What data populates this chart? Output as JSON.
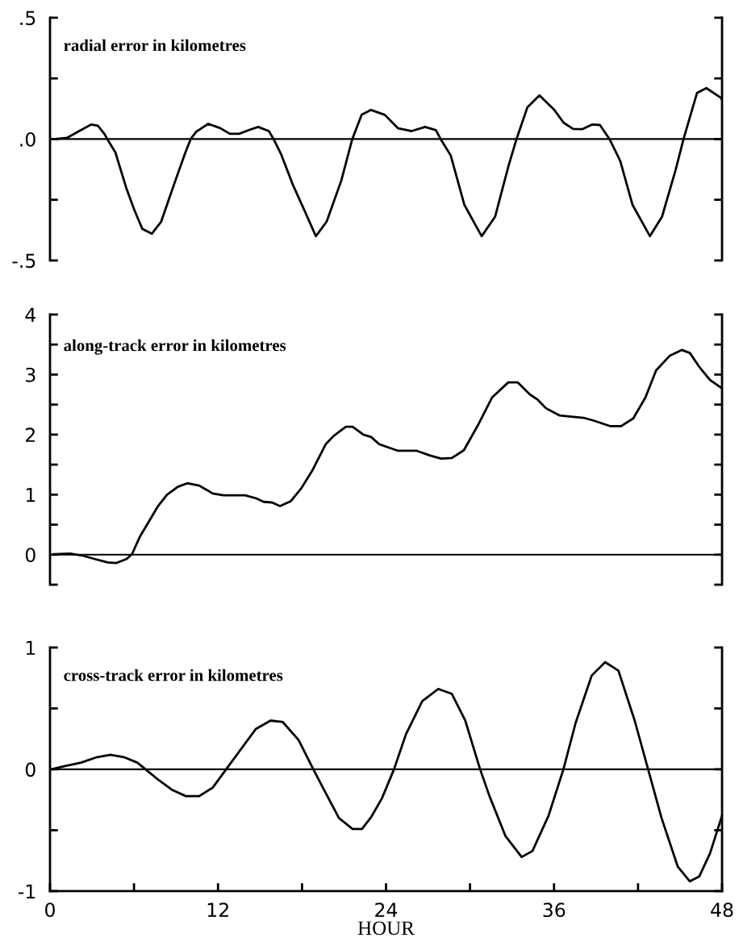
{
  "chart_data": [
    {
      "type": "line",
      "annotations": [
        "radial error in kilometres"
      ],
      "tick_labels": "y",
      "xlim": [
        0,
        48
      ],
      "ylim": [
        -0.5,
        0.5
      ],
      "yticks": [
        {
          "value": -0.5,
          "label": "-.5"
        },
        {
          "value": -0.25,
          "label": null
        },
        {
          "value": 0,
          "label": ".0"
        },
        {
          "value": 0.25,
          "label": null
        },
        {
          "value": 0.5,
          "label": ".5"
        }
      ],
      "ref_lines": [
        {
          "axis": "y",
          "value": 0,
          "color": "#000000"
        }
      ],
      "x": [
        0.35,
        1.21,
        1.98,
        2.94,
        3.42,
        3.9,
        4.09,
        4.67,
        5.44,
        6.01,
        6.59,
        7.27,
        7.94,
        8.9,
        9.67,
        10.05,
        10.44,
        11.3,
        12.16,
        12.84,
        13.51,
        14.29,
        14.86,
        15.63,
        15.97,
        16.49,
        17.36,
        18.22,
        18.99,
        19.76,
        20.81,
        21.59,
        22.26,
        22.93,
        23.91,
        24.87,
        25.83,
        26.79,
        27.56,
        27.9,
        28.62,
        29.59,
        30.83,
        31.79,
        32.75,
        33.32,
        34.09,
        34.96,
        36.02,
        36.69,
        37.37,
        38.04,
        38.71,
        39.28,
        39.96,
        40.73,
        41.6,
        42.85,
        43.71,
        44.67,
        45.25,
        46.21,
        46.88,
        47.93,
        48
      ],
      "series": [
        {
          "color": "#000000",
          "values": [
            0,
            0.005,
            0.03,
            0.06,
            0.055,
            0.02,
            0,
            -0.055,
            -0.2,
            -0.29,
            -0.37,
            -0.39,
            -0.34,
            -0.18,
            -0.055,
            0,
            0.03,
            0.063,
            0.045,
            0.022,
            0.022,
            0.039,
            0.05,
            0.033,
            0,
            -0.06,
            -0.19,
            -0.3,
            -0.4,
            -0.34,
            -0.17,
            0,
            0.1,
            0.12,
            0.1,
            0.044,
            0.033,
            0.05,
            0.037,
            0,
            -0.067,
            -0.27,
            -0.4,
            -0.32,
            -0.11,
            0,
            0.13,
            0.18,
            0.12,
            0.067,
            0.042,
            0.041,
            0.06,
            0.058,
            0,
            -0.09,
            -0.27,
            -0.4,
            -0.32,
            -0.13,
            0,
            0.19,
            0.21,
            0.17,
            0.16
          ]
        }
      ]
    },
    {
      "type": "line",
      "annotations": [
        "along-track error in kilometres"
      ],
      "tick_labels": "y",
      "xlim": [
        0,
        48
      ],
      "ylim": [
        -0.5,
        4
      ],
      "yticks": [
        {
          "value": -0.5,
          "label": null
        },
        0,
        {
          "value": 0.5,
          "label": null
        },
        1,
        {
          "value": 1.5,
          "label": null
        },
        2,
        {
          "value": 2.5,
          "label": null
        },
        3,
        {
          "value": 3.5,
          "label": null
        },
        4
      ],
      "ref_lines": [
        {
          "axis": "y",
          "value": 0,
          "color": "#000000"
        }
      ],
      "x": [
        0.29,
        1.44,
        2.4,
        3.17,
        4.13,
        4.71,
        5.48,
        5.86,
        6.44,
        7.01,
        7.69,
        8.36,
        9.13,
        9.8,
        10.66,
        11.62,
        12.39,
        13.93,
        14.7,
        15.27,
        15.85,
        16.43,
        17.19,
        17.96,
        18.73,
        19.69,
        20.27,
        21.13,
        21.61,
        22.38,
        22.94,
        23.51,
        24.86,
        26.2,
        27.16,
        27.93,
        28.7,
        29.56,
        30.62,
        31.58,
        32.73,
        33.4,
        34.27,
        34.84,
        35.42,
        36.38,
        38.11,
        38.88,
        40.03,
        40.79,
        41.66,
        42.53,
        43.29,
        44.25,
        45.12,
        45.7,
        46.37,
        47.14,
        48
      ],
      "series": [
        {
          "color": "#000000",
          "values": [
            0.01,
            0.02,
            -0.02,
            -0.07,
            -0.13,
            -0.14,
            -0.07,
            0.01,
            0.31,
            0.53,
            0.8,
            1.0,
            1.13,
            1.19,
            1.15,
            1.02,
            0.99,
            0.99,
            0.94,
            0.88,
            0.87,
            0.81,
            0.89,
            1.11,
            1.4,
            1.84,
            1.98,
            2.13,
            2.13,
            2.0,
            1.96,
            1.84,
            1.73,
            1.73,
            1.65,
            1.6,
            1.61,
            1.74,
            2.18,
            2.62,
            2.87,
            2.87,
            2.67,
            2.58,
            2.44,
            2.32,
            2.28,
            2.23,
            2.14,
            2.14,
            2.27,
            2.62,
            3.07,
            3.31,
            3.41,
            3.36,
            3.13,
            2.91,
            2.77
          ]
        }
      ]
    },
    {
      "type": "line",
      "annotations": [
        "cross-track error in kilometres"
      ],
      "xlabel": "HOUR",
      "xlim": [
        0,
        48
      ],
      "ylim": [
        -1,
        1
      ],
      "xticks": [
        0,
        {
          "value": 6,
          "label": null
        },
        12,
        {
          "value": 18,
          "label": null
        },
        24,
        {
          "value": 30,
          "label": null
        },
        36,
        {
          "value": 42,
          "label": null
        },
        48
      ],
      "yticks": [
        -1,
        {
          "value": -0.5,
          "label": null
        },
        0,
        {
          "value": 0.5,
          "label": null
        },
        1
      ],
      "ref_lines": [
        {
          "axis": "y",
          "value": 0,
          "color": "#000000"
        }
      ],
      "x": [
        0.1,
        1.06,
        2.21,
        3.36,
        4.32,
        5.28,
        6.24,
        6.82,
        7.78,
        8.74,
        9.7,
        10.66,
        11.62,
        12.58,
        13.54,
        14.69,
        15.75,
        16.61,
        17.76,
        18.72,
        19.49,
        20.64,
        21.61,
        22.28,
        22.95,
        23.7,
        24.57,
        25.43,
        26.59,
        27.73,
        28.7,
        29.66,
        30.72,
        31.39,
        32.54,
        33.69,
        34.46,
        35.61,
        36.67,
        37.54,
        38.69,
        39.65,
        40.6,
        41.76,
        42.72,
        43.68,
        44.84,
        45.7,
        46.37,
        47.14,
        48
      ],
      "series": [
        {
          "color": "#000000",
          "values": [
            0,
            0.027,
            0.055,
            0.1,
            0.12,
            0.1,
            0.055,
            0,
            -0.09,
            -0.17,
            -0.22,
            -0.22,
            -0.15,
            0,
            0.15,
            0.33,
            0.4,
            0.39,
            0.24,
            0.02,
            -0.15,
            -0.4,
            -0.49,
            -0.49,
            -0.39,
            -0.24,
            0,
            0.29,
            0.56,
            0.66,
            0.62,
            0.4,
            0,
            -0.22,
            -0.55,
            -0.72,
            -0.67,
            -0.38,
            0,
            0.38,
            0.77,
            0.88,
            0.81,
            0.4,
            0,
            -0.4,
            -0.8,
            -0.92,
            -0.88,
            -0.69,
            -0.38
          ]
        }
      ]
    }
  ]
}
